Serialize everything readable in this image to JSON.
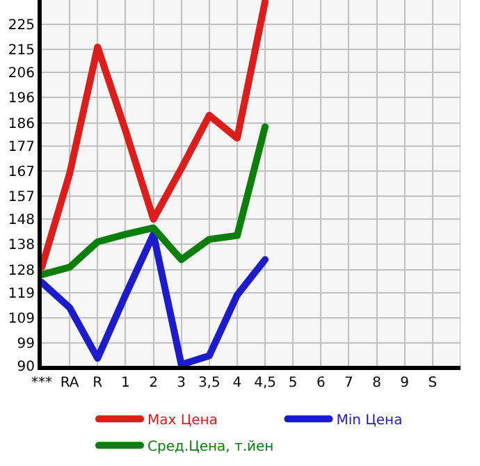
{
  "chart_data": {
    "type": "line",
    "categories": [
      "***",
      "RA",
      "R",
      "1",
      "2",
      "3",
      "3,5",
      "4",
      "4,5",
      "5",
      "6",
      "7",
      "8",
      "9",
      "S"
    ],
    "series": [
      {
        "name": "Max Цена",
        "color": "#dd1c1c",
        "values": [
          129,
          166,
          216,
          183,
          148,
          168,
          189,
          180,
          234,
          null,
          null,
          null,
          null,
          null,
          null
        ]
      },
      {
        "name": "Min Цена",
        "color": "#1c1ccc",
        "values": [
          123,
          113,
          93,
          118,
          142,
          90.5,
          94,
          118,
          132,
          null,
          null,
          null,
          null,
          null,
          null
        ]
      },
      {
        "name": "Сред.Цена, т.йен",
        "color": "#0a800a",
        "values": [
          126,
          129,
          139,
          142,
          144.5,
          132,
          140,
          141.5,
          184.5,
          null,
          null,
          null,
          null,
          null,
          null
        ]
      }
    ],
    "ylim": [
      90,
      234.6
    ],
    "yticks": [
      90,
      99,
      109,
      119,
      128,
      138,
      148,
      157,
      167,
      177,
      186,
      196,
      206,
      215,
      225
    ],
    "grid": true,
    "legend": "bottom",
    "marker": "none",
    "line_style": "solid"
  }
}
